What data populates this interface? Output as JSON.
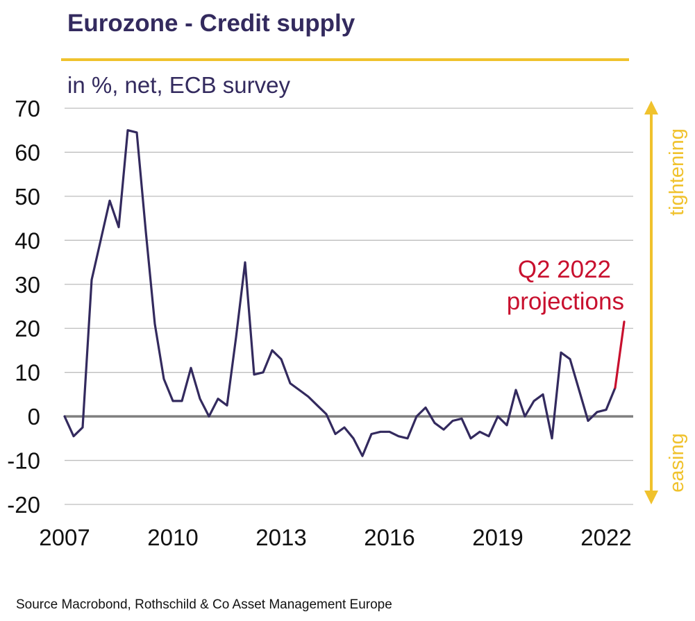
{
  "title": "Eurozone - Credit supply",
  "subtitle": "in %, net, ECB survey",
  "source": "Source Macrobond, Rothschild & Co Asset Management Europe",
  "colors": {
    "series": "#332a5e",
    "projection": "#c8102e",
    "accent": "#f0c22d",
    "grid": "#bdbdbd",
    "zero_line": "#7f7f7f"
  },
  "chart_data": {
    "type": "line",
    "title": "Eurozone - Credit supply",
    "subtitle": "in %, net, ECB survey",
    "xlabel": "",
    "ylabel": "",
    "xlim": [
      2007,
      2022.75
    ],
    "ylim": [
      -20,
      70
    ],
    "y_ticks": [
      70,
      60,
      50,
      40,
      30,
      20,
      10,
      0,
      -10,
      -20
    ],
    "y_tick_labels": [
      "70",
      "60",
      "50",
      "40",
      "30",
      "20",
      "10",
      "0",
      "-10",
      "-20"
    ],
    "x_ticks": [
      2007,
      2010,
      2013,
      2016,
      2019,
      2022
    ],
    "x_tick_labels": [
      "2007",
      "2010",
      "2013",
      "2016",
      "2019",
      "2022"
    ],
    "grid": true,
    "legend": "none",
    "series": [
      {
        "x": [
          2007.0,
          2007.25,
          2007.5,
          2007.75,
          2008.0,
          2008.25,
          2008.5,
          2008.75,
          2009.0,
          2009.25,
          2009.5,
          2009.75,
          2010.0,
          2010.25,
          2010.5,
          2010.75,
          2011.0,
          2011.25,
          2011.5,
          2011.75,
          2012.0,
          2012.25,
          2012.5,
          2012.75,
          2013.0,
          2013.25,
          2013.5,
          2013.75,
          2014.0,
          2014.25,
          2014.5,
          2014.75,
          2015.0,
          2015.25,
          2015.5,
          2015.75,
          2016.0,
          2016.25,
          2016.5,
          2016.75,
          2017.0,
          2017.25,
          2017.5,
          2017.75,
          2018.0,
          2018.25,
          2018.5,
          2018.75,
          2019.0,
          2019.25,
          2019.5,
          2019.75,
          2020.0,
          2020.25,
          2020.5,
          2020.75,
          2021.0,
          2021.25,
          2021.5,
          2021.75,
          2022.0,
          2022.25
        ],
        "values": [
          0,
          -4.5,
          -2.5,
          31,
          40,
          49,
          43,
          65,
          64.5,
          42,
          21,
          8.5,
          3.5,
          3.5,
          11,
          4,
          0,
          4,
          2.5,
          18,
          35,
          9.5,
          10,
          15,
          13,
          7.5,
          6,
          4.5,
          2.5,
          0.5,
          -4,
          -2.5,
          -5,
          -9,
          -4,
          -3.5,
          -3.5,
          -4.5,
          -5,
          0,
          2,
          -1.5,
          -3,
          -1,
          -0.5,
          -5,
          -3.5,
          -4.5,
          0,
          -2,
          6,
          0,
          3.5,
          5,
          -5,
          14.5,
          13,
          6,
          -1,
          1,
          1.5,
          6.5
        ]
      },
      {
        "x": [
          2022.25,
          2022.5
        ],
        "values": [
          6.5,
          21.5
        ]
      }
    ],
    "annotations": [
      "Q2 2022",
      "projections"
    ],
    "side_labels": [
      "tightening",
      "easing"
    ]
  }
}
